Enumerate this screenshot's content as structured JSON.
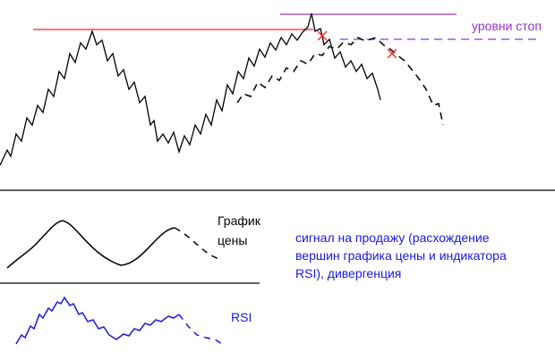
{
  "stop_levels_label": "уровни стоп",
  "price_chart_label": [
    "График",
    "цены"
  ],
  "signal_text": [
    "сигнал на продажу (расхождение",
    "вершин графика цены и индикатора",
    "RSI), дивергенция"
  ],
  "rsi_label": "RSI"
}
